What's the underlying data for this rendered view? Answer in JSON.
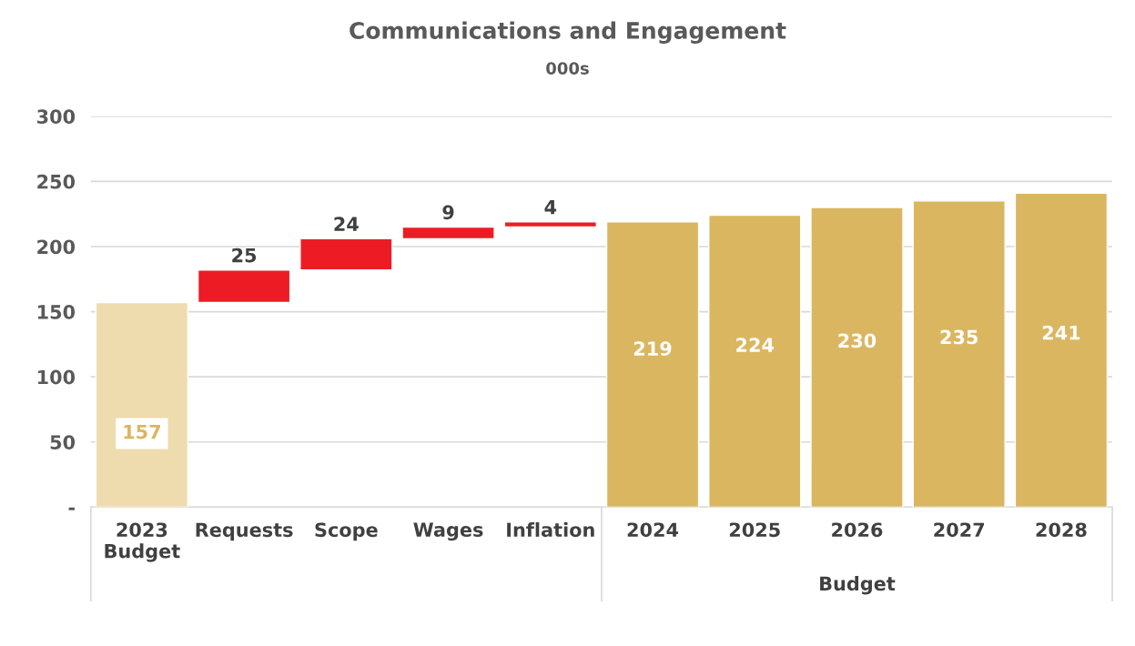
{
  "chart_data": {
    "type": "bar",
    "title": "Communications and Engagement",
    "subtitle": "000s",
    "categories": [
      "2023\nBudget",
      "Requests",
      "Scope",
      "Wages",
      "Inflation",
      "2024",
      "2025",
      "2026",
      "2027",
      "2028"
    ],
    "values": [
      157,
      25,
      24,
      9,
      4,
      219,
      224,
      230,
      235,
      241
    ],
    "base": [
      0,
      157,
      182,
      206,
      215,
      0,
      0,
      0,
      0,
      0
    ],
    "colors": [
      "#eedcaf",
      "#ed1c24",
      "#ed1c24",
      "#ed1c24",
      "#ed1c24",
      "#dbb661",
      "#dbb661",
      "#dbb661",
      "#dbb661",
      "#dbb661"
    ],
    "ylim": [
      0,
      300
    ],
    "yticks": [
      {
        "value": 0,
        "label": "-"
      },
      50,
      100,
      150,
      200,
      250,
      300
    ],
    "grid": "y",
    "data_labels": true,
    "legend": false,
    "annotations": [
      "Budget"
    ]
  }
}
